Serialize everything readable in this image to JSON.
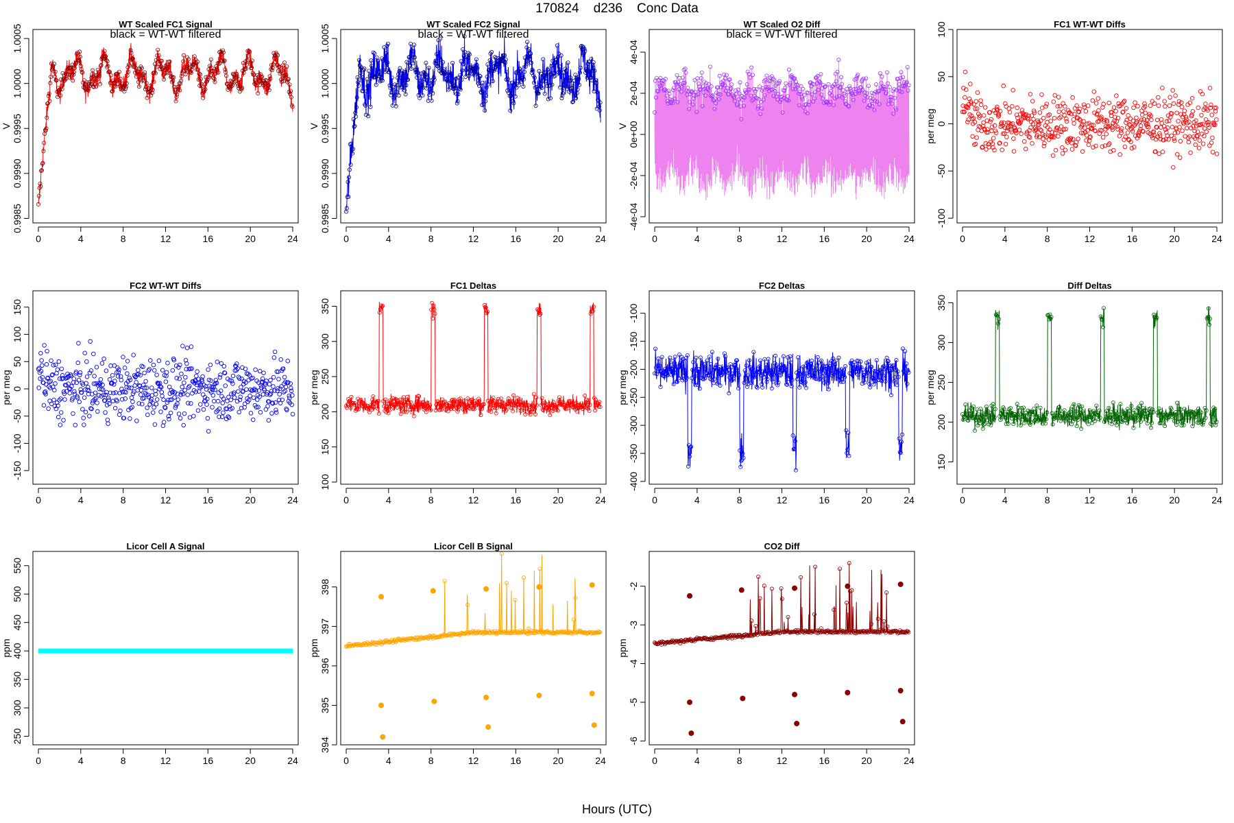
{
  "page": {
    "title": "170824    d236    Conc Data",
    "xaxis_title": "Hours (UTC)"
  },
  "chart_data": [
    {
      "id": "p1",
      "type": "line",
      "title": "WT Scaled FC1 Signal",
      "subtitle": "black = WT-WT filtered",
      "ylabel": "V",
      "xlim": [
        0,
        24
      ],
      "ylim": [
        0.99845,
        1.0006
      ],
      "xticks": [
        0,
        4,
        8,
        12,
        16,
        20,
        24
      ],
      "yticks": [
        0.9985,
        0.999,
        0.9995,
        1.0,
        1.0005
      ],
      "ytick_labels": [
        "0.9985",
        "0.9990",
        "0.9995",
        "1.0000",
        "1.0005"
      ],
      "color": "#ff0000",
      "point_color": "#8b0000",
      "series_kind": "signal_rise",
      "level": 1.0001,
      "start": 0.9986,
      "amp": 0.00022,
      "noise": 8e-05
    },
    {
      "id": "p2",
      "type": "line",
      "title": "WT Scaled FC2 Signal",
      "subtitle": "black = WT-WT filtered",
      "ylabel": "V",
      "xlim": [
        0,
        24
      ],
      "ylim": [
        0.99845,
        1.0006
      ],
      "xticks": [
        0,
        4,
        8,
        12,
        16,
        20,
        24
      ],
      "yticks": [
        0.9985,
        0.999,
        0.9995,
        1.0,
        1.0005
      ],
      "ytick_labels": [
        "0.9985",
        "0.9990",
        "0.9995",
        "1.0000",
        "1.0005"
      ],
      "color": "#0000ff",
      "point_color": "#00008b",
      "series_kind": "signal_rise",
      "level": 1.0001,
      "start": 0.99855,
      "amp": 0.00022,
      "noise": 0.00015
    },
    {
      "id": "p3",
      "type": "line",
      "title": "WT Scaled O2 Diff",
      "subtitle": "black = WT-WT filtered",
      "ylabel": "V",
      "xlim": [
        0,
        24
      ],
      "ylim": [
        -0.00043,
        0.00051
      ],
      "xticks": [
        0,
        4,
        8,
        12,
        16,
        20,
        24
      ],
      "yticks": [
        -0.0004,
        -0.0002,
        0,
        0.0002,
        0.0004
      ],
      "ytick_labels": [
        "-4e-04",
        "-2e-04",
        "0e+00",
        "2e-04",
        "4e-04"
      ],
      "color": "#ee82ee",
      "point_color": "#9b30ff",
      "series_kind": "diff_band"
    },
    {
      "id": "p4",
      "type": "scatter",
      "title": "FC1 WT-WT Diffs",
      "ylabel": "per meg",
      "xlim": [
        0,
        24
      ],
      "ylim": [
        -105,
        100
      ],
      "xticks": [
        0,
        4,
        8,
        12,
        16,
        20,
        24
      ],
      "yticks": [
        -100,
        -50,
        0,
        50,
        100
      ],
      "ytick_labels": [
        "-100",
        "-50",
        "0",
        "50",
        "100"
      ],
      "color": "#ff0000",
      "series_kind": "scatter",
      "spread": 22
    },
    {
      "id": "p5",
      "type": "scatter",
      "title": "FC2 WT-WT Diffs",
      "ylabel": "per meg",
      "xlim": [
        0,
        24
      ],
      "ylim": [
        -175,
        180
      ],
      "xticks": [
        0,
        4,
        8,
        12,
        16,
        20,
        24
      ],
      "yticks": [
        -150,
        -100,
        -50,
        0,
        50,
        100,
        150
      ],
      "ytick_labels": [
        "-150",
        "-100",
        "-50",
        "0",
        "50",
        "100",
        "150"
      ],
      "color": "#0000ff",
      "series_kind": "scatter",
      "spread": 42
    },
    {
      "id": "p6",
      "type": "line",
      "title": "FC1 Deltas",
      "ylabel": "per meg",
      "xlim": [
        0,
        24
      ],
      "ylim": [
        97,
        372
      ],
      "xticks": [
        0,
        4,
        8,
        12,
        16,
        20,
        24
      ],
      "yticks": [
        100,
        150,
        200,
        250,
        300,
        350
      ],
      "ytick_labels": [
        "100",
        "150",
        "200",
        "250",
        "300",
        "350"
      ],
      "color": "#ff0000",
      "series_kind": "deltas",
      "base": 210,
      "noise": 9,
      "spikes": [
        3.3,
        8.2,
        13.2,
        18.2,
        23.2
      ],
      "spike_dir": 1,
      "spike_top": 345
    },
    {
      "id": "p7",
      "type": "line",
      "title": "FC2 Deltas",
      "ylabel": "per meg",
      "xlim": [
        0,
        24
      ],
      "ylim": [
        -405,
        -60
      ],
      "xticks": [
        0,
        4,
        8,
        12,
        16,
        20,
        24
      ],
      "yticks": [
        -400,
        -350,
        -300,
        -250,
        -200,
        -150,
        -100
      ],
      "ytick_labels": [
        "-400",
        "-350",
        "-300",
        "-250",
        "-200",
        "-150",
        "-100"
      ],
      "color": "#0000ff",
      "series_kind": "deltas",
      "base": -205,
      "noise": 22,
      "spikes": [
        3.3,
        8.2,
        13.2,
        18.2,
        23.2
      ],
      "spike_dir": -1,
      "spike_top": -340
    },
    {
      "id": "p8",
      "type": "line",
      "title": "Diff Deltas",
      "ylabel": "per meg",
      "xlim": [
        0,
        24
      ],
      "ylim": [
        122,
        365
      ],
      "xticks": [
        0,
        4,
        8,
        12,
        16,
        20,
        24
      ],
      "yticks": [
        150,
        200,
        250,
        300,
        350
      ],
      "ytick_labels": [
        "150",
        "200",
        "250",
        "300",
        "350"
      ],
      "color": "#006400",
      "series_kind": "deltas",
      "base": 208,
      "noise": 10,
      "spikes": [
        3.3,
        8.2,
        13.2,
        18.2,
        23.2
      ],
      "spike_dir": 1,
      "spike_top": 330
    },
    {
      "id": "p9",
      "type": "line",
      "title": "Licor Cell A Signal",
      "ylabel": "ppm",
      "xlim": [
        0,
        24
      ],
      "ylim": [
        235,
        575
      ],
      "xticks": [
        0,
        4,
        8,
        12,
        16,
        20,
        24
      ],
      "yticks": [
        250,
        300,
        350,
        400,
        450,
        500,
        550
      ],
      "ytick_labels": [
        "250",
        "300",
        "350",
        "400",
        "450",
        "500",
        "550"
      ],
      "color": "#00ffff",
      "series_kind": "flat",
      "level": 400
    },
    {
      "id": "p10",
      "type": "line",
      "title": "Licor Cell B Signal",
      "ylabel": "ppm",
      "xlim": [
        0,
        24
      ],
      "ylim": [
        394,
        398.9
      ],
      "xticks": [
        0,
        4,
        8,
        12,
        16,
        20,
        24
      ],
      "yticks": [
        394,
        395,
        396,
        397,
        398
      ],
      "ytick_labels": [
        "394",
        "395",
        "396",
        "397",
        "398"
      ],
      "color": "#ffa500",
      "series_kind": "licor",
      "base0": 396.5,
      "base1": 396.85,
      "noise": 0.03,
      "fill_points": [
        [
          3.3,
          397.75
        ],
        [
          3.3,
          395.0
        ],
        [
          3.45,
          394.2
        ],
        [
          8.2,
          397.9
        ],
        [
          8.3,
          395.1
        ],
        [
          13.2,
          397.95
        ],
        [
          13.2,
          395.2
        ],
        [
          13.4,
          394.45
        ],
        [
          18.2,
          398.0
        ],
        [
          18.2,
          395.25
        ],
        [
          23.2,
          398.05
        ],
        [
          23.2,
          395.3
        ],
        [
          23.4,
          394.5
        ]
      ],
      "fill_color": "#ffa500"
    },
    {
      "id": "p11",
      "type": "line",
      "title": "CO2 Diff",
      "ylabel": "ppm",
      "xlim": [
        0,
        24
      ],
      "ylim": [
        -6.1,
        -1.1
      ],
      "xticks": [
        0,
        4,
        8,
        12,
        16,
        20,
        24
      ],
      "yticks": [
        -6,
        -5,
        -4,
        -3,
        -2
      ],
      "ytick_labels": [
        "-6",
        "-5",
        "-4",
        "-3",
        "-2"
      ],
      "color": "#8b0000",
      "series_kind": "licor",
      "base0": -3.48,
      "base1": -3.18,
      "noise": 0.03,
      "fill_points": [
        [
          3.3,
          -2.25
        ],
        [
          3.3,
          -5.0
        ],
        [
          3.45,
          -5.8
        ],
        [
          8.2,
          -2.1
        ],
        [
          8.3,
          -4.9
        ],
        [
          13.2,
          -2.05
        ],
        [
          13.2,
          -4.8
        ],
        [
          13.4,
          -5.55
        ],
        [
          18.2,
          -2.0
        ],
        [
          18.2,
          -4.75
        ],
        [
          23.2,
          -1.95
        ],
        [
          23.2,
          -4.7
        ],
        [
          23.4,
          -5.5
        ]
      ],
      "fill_color": "#8b0000"
    }
  ]
}
